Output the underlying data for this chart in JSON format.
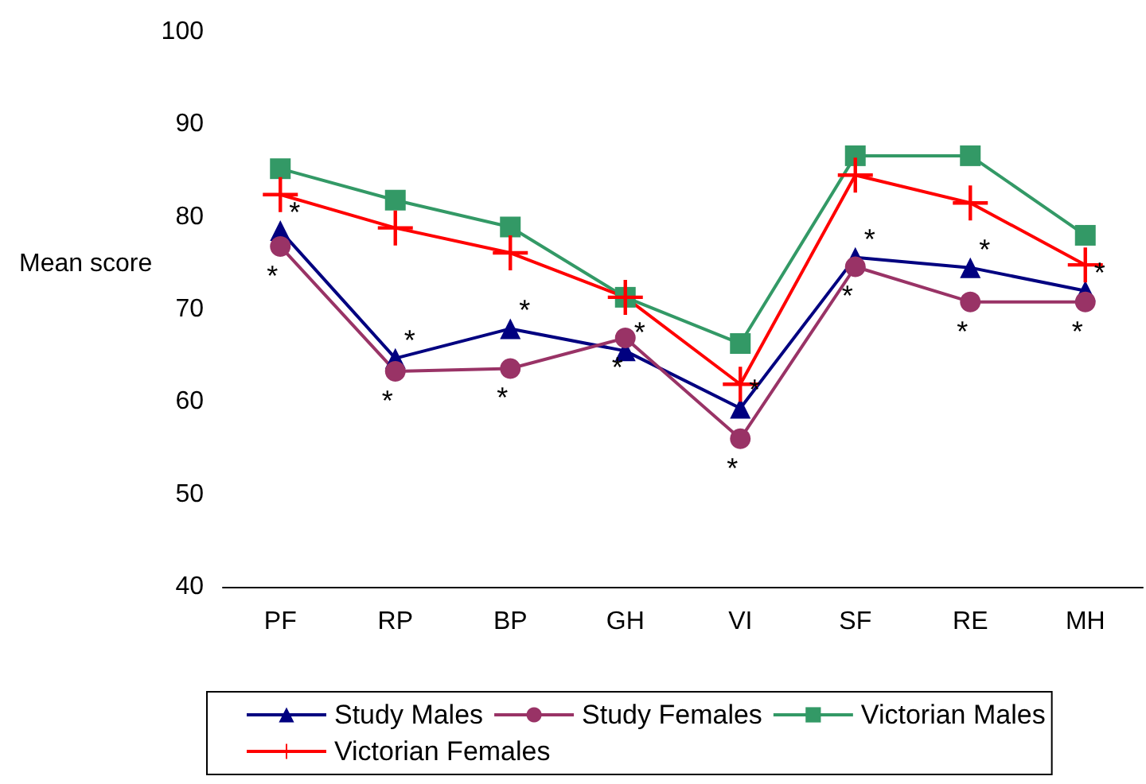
{
  "chart_data": {
    "type": "line",
    "ylabel": "Mean score",
    "categories": [
      "PF",
      "RP",
      "BP",
      "GH",
      "VI",
      "SF",
      "RE",
      "MH"
    ],
    "ylim": [
      40,
      100
    ],
    "yticks": [
      40,
      50,
      60,
      70,
      80,
      90,
      100
    ],
    "grid": false,
    "legend": "bottom",
    "line_style": "solid",
    "series": [
      {
        "name": "Study Males",
        "color": "#000080",
        "marker": "triangle",
        "values": [
          78.5,
          64.7,
          67.9,
          65.5,
          59.3,
          75.6,
          74.5,
          72.0
        ],
        "value_labels": [
          "*",
          "*",
          "*",
          "*",
          "*",
          "*",
          "*",
          "*"
        ]
      },
      {
        "name": "Study Females",
        "color": "#993366",
        "marker": "circle",
        "values": [
          76.8,
          63.3,
          63.6,
          66.9,
          56.0,
          74.6,
          70.8,
          70.8
        ],
        "value_labels": [
          "*",
          "*",
          "*",
          "*",
          "*",
          "*",
          "*",
          "*"
        ]
      },
      {
        "name": "Victorian Males",
        "color": "#339966",
        "marker": "square",
        "values": [
          85.2,
          81.8,
          78.9,
          71.3,
          66.3,
          86.6,
          86.6,
          78.0
        ]
      },
      {
        "name": "Victorian Females",
        "color": "#ff0000",
        "marker": "cross",
        "values": [
          82.4,
          78.8,
          76.1,
          71.3,
          61.9,
          84.5,
          81.5,
          74.8
        ]
      }
    ]
  }
}
